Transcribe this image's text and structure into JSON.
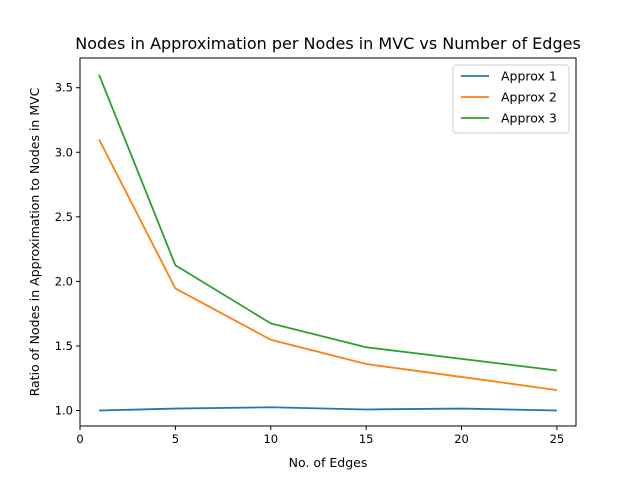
{
  "chart_data": {
    "type": "line",
    "title": "Nodes in Approximation per Nodes in MVC vs Number of Edges",
    "xlabel": "No. of Edges",
    "ylabel": "Ratio of Nodes in Approximation to Nodes in MVC",
    "xlim": [
      0,
      26
    ],
    "ylim": [
      0.88,
      3.73
    ],
    "xticks": [
      0,
      5,
      10,
      15,
      20,
      25
    ],
    "yticks": [
      1.0,
      1.5,
      2.0,
      2.5,
      3.0,
      3.5
    ],
    "ytick_labels": [
      "1.0",
      "1.5",
      "2.0",
      "2.5",
      "3.0",
      "3.5"
    ],
    "x": [
      1,
      5,
      10,
      15,
      20,
      25
    ],
    "series": [
      {
        "name": "Approx 1",
        "color": "#1f77b4",
        "values": [
          1.0,
          1.015,
          1.025,
          1.008,
          1.015,
          1.0
        ]
      },
      {
        "name": "Approx 2",
        "color": "#ff7f0e",
        "values": [
          3.1,
          1.945,
          1.548,
          1.36,
          1.26,
          1.158
        ]
      },
      {
        "name": "Approx 3",
        "color": "#2ca02c",
        "values": [
          3.6,
          2.125,
          1.675,
          1.49,
          1.4,
          1.31
        ]
      }
    ],
    "grid": false,
    "legend_position": "top-right"
  }
}
